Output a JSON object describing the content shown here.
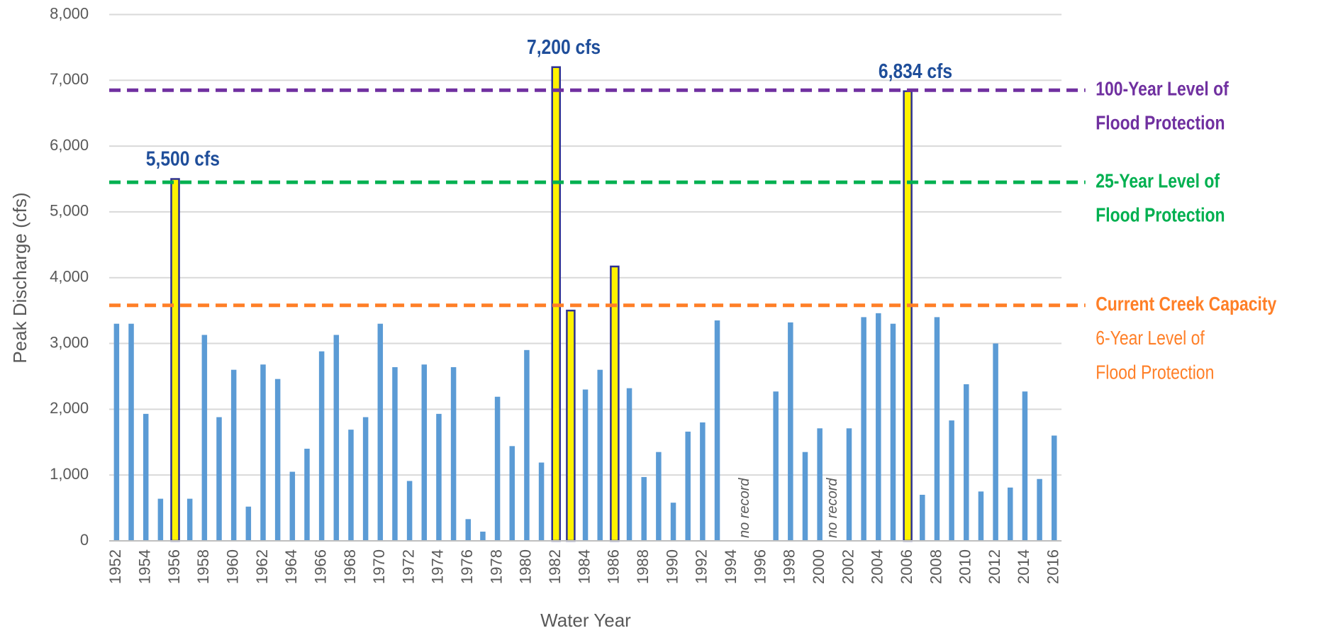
{
  "chart_data": {
    "type": "bar",
    "x": [
      1952,
      1953,
      1954,
      1955,
      1956,
      1957,
      1958,
      1959,
      1960,
      1961,
      1962,
      1963,
      1964,
      1965,
      1966,
      1967,
      1968,
      1969,
      1970,
      1971,
      1972,
      1973,
      1974,
      1975,
      1976,
      1977,
      1978,
      1979,
      1980,
      1981,
      1982,
      1983,
      1984,
      1985,
      1986,
      1987,
      1988,
      1989,
      1990,
      1991,
      1992,
      1993,
      1994,
      1995,
      1996,
      1997,
      1998,
      1999,
      2000,
      2001,
      2002,
      2003,
      2004,
      2005,
      2006,
      2007,
      2008,
      2009,
      2010,
      2011,
      2012,
      2013,
      2014,
      2015,
      2016
    ],
    "values": [
      3300,
      3300,
      1930,
      640,
      5500,
      640,
      3130,
      1880,
      2600,
      520,
      2680,
      2460,
      1050,
      1400,
      2880,
      3130,
      1690,
      1880,
      3300,
      2640,
      910,
      2680,
      1930,
      2640,
      330,
      140,
      2190,
      1440,
      2900,
      1190,
      7200,
      3500,
      2300,
      2600,
      4170,
      2320,
      970,
      1350,
      580,
      1660,
      1800,
      3350,
      null,
      null,
      null,
      2270,
      3320,
      1350,
      1710,
      null,
      1710,
      3400,
      3460,
      3300,
      6834,
      700,
      3400,
      1830,
      2380,
      750,
      3000,
      810,
      2270,
      940,
      1600
    ],
    "color": "#5b9bd5",
    "highlighted": [
      1956,
      1982,
      1983,
      1986,
      2006
    ],
    "highlight_color": "#fff200",
    "highlight_edge": "#2e3192",
    "xlim": [
      1951.5,
      2016.5
    ],
    "xticks": [
      1952,
      1954,
      1956,
      1958,
      1960,
      1962,
      1964,
      1966,
      1968,
      1970,
      1972,
      1974,
      1976,
      1978,
      1980,
      1982,
      1984,
      1986,
      1988,
      1990,
      1992,
      1994,
      1996,
      1998,
      2000,
      2002,
      2004,
      2006,
      2008,
      2010,
      2012,
      2014,
      2016
    ],
    "ylim": [
      0,
      8000
    ],
    "yticks": [
      0,
      {
        "value": 1000,
        "label": "1,000"
      },
      {
        "value": 2000,
        "label": "2,000"
      },
      {
        "value": 3000,
        "label": "3,000"
      },
      {
        "value": 4000,
        "label": "4,000"
      },
      {
        "value": 5000,
        "label": "5,000"
      },
      {
        "value": 6000,
        "label": "6,000"
      },
      {
        "value": 7000,
        "label": "7,000"
      },
      {
        "value": 8000,
        "label": "8,000"
      }
    ],
    "grid": true,
    "x_label": "Water Year",
    "y_label": "Peak Discharge (cfs)",
    "bar_labels": [
      {
        "x": 1956,
        "label": "5,500 cfs"
      },
      {
        "x": 1982,
        "label": "7,200 cfs"
      },
      {
        "x": 2006,
        "label": "6,834 cfs"
      }
    ],
    "annotations": [
      {
        "x": 1995,
        "text": "no record"
      },
      {
        "x": 2001,
        "text": "no record"
      }
    ],
    "reference_lines": [
      {
        "value": 6850,
        "color": "#7030a0",
        "label": [
          "100-Year Level of",
          "Flood Protection"
        ]
      },
      {
        "value": 5450,
        "color": "#00b050",
        "label": [
          "25-Year Level of",
          "Flood Protection"
        ]
      },
      {
        "value": 3580,
        "color": "#ff7f27",
        "label": [
          "Current Creek Capacity"
        ],
        "note": [
          "6-Year Level of",
          "Flood Protection"
        ]
      }
    ]
  }
}
